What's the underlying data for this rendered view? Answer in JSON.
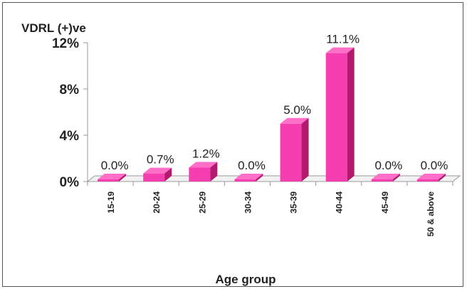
{
  "chart_data": {
    "type": "bar",
    "title": "",
    "ylabel": "VDRL (+)ve",
    "xlabel": "Age group",
    "ylim": [
      0,
      12
    ],
    "yticks": [
      "0%",
      "4%",
      "8%",
      "12%"
    ],
    "ytick_values": [
      0,
      4,
      8,
      12
    ],
    "categories": [
      "15-19",
      "20-24",
      "25-29",
      "30-34",
      "35-39",
      "40-44",
      "45-49",
      "50 & above"
    ],
    "values": [
      0.0,
      0.7,
      1.2,
      0.0,
      5.0,
      11.1,
      0.0,
      0.0
    ],
    "data_labels": [
      "0.0%",
      "0.7%",
      "1.2%",
      "0.0%",
      "5.0%",
      "11.1%",
      "0.0%",
      "0.0%"
    ],
    "grid": false,
    "legend": "none",
    "colors": {
      "bar_front": "#f53fb0",
      "bar_top": "#ff6fc8",
      "bar_side": "#b3196f",
      "axis": "#999999"
    }
  }
}
